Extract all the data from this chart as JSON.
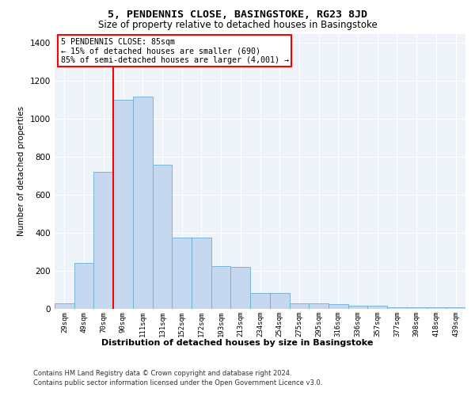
{
  "title": "5, PENDENNIS CLOSE, BASINGSTOKE, RG23 8JD",
  "subtitle": "Size of property relative to detached houses in Basingstoke",
  "xlabel": "Distribution of detached houses by size in Basingstoke",
  "ylabel": "Number of detached properties",
  "bar_labels": [
    "29sqm",
    "49sqm",
    "70sqm",
    "90sqm",
    "111sqm",
    "131sqm",
    "152sqm",
    "172sqm",
    "193sqm",
    "213sqm",
    "234sqm",
    "254sqm",
    "275sqm",
    "295sqm",
    "316sqm",
    "336sqm",
    "357sqm",
    "377sqm",
    "398sqm",
    "418sqm",
    "439sqm"
  ],
  "bar_values": [
    30,
    240,
    720,
    1100,
    1120,
    760,
    375,
    375,
    225,
    220,
    85,
    85,
    28,
    28,
    25,
    18,
    18,
    10,
    10,
    8,
    8
  ],
  "bar_color": "#c5d8f0",
  "bar_edge_color": "#6baed6",
  "vline_color": "red",
  "vline_position": 3,
  "annotation_line1": "5 PENDENNIS CLOSE: 85sqm",
  "annotation_line2": "← 15% of detached houses are smaller (690)",
  "annotation_line3": "85% of semi-detached houses are larger (4,001) →",
  "ylim": [
    0,
    1450
  ],
  "yticks": [
    0,
    200,
    400,
    600,
    800,
    1000,
    1200,
    1400
  ],
  "background_color": "#eef2f9",
  "grid_color": "#ffffff",
  "footer_line1": "Contains HM Land Registry data © Crown copyright and database right 2024.",
  "footer_line2": "Contains public sector information licensed under the Open Government Licence v3.0."
}
